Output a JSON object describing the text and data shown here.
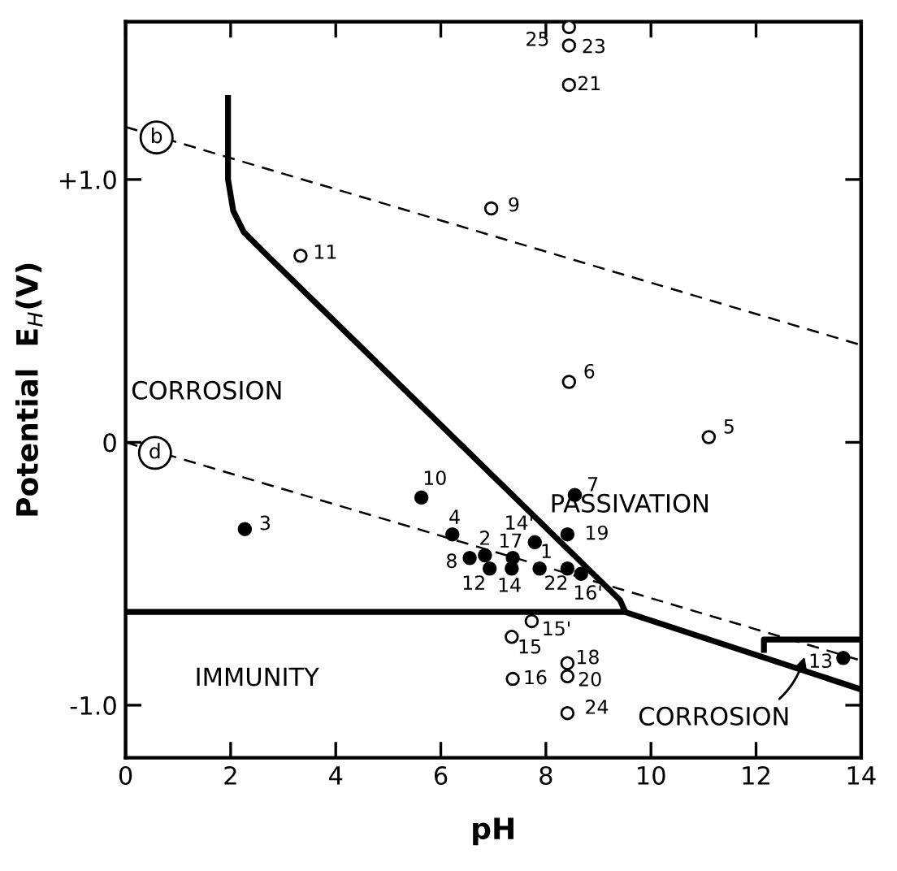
{
  "chart_data": {
    "type": "scatter",
    "xlabel": "pH",
    "ylabel": "Potential  E$_{H}$(V)",
    "xlim": [
      0,
      14
    ],
    "ylim": [
      -1.2,
      1.6
    ],
    "xticks": [
      0,
      2,
      4,
      6,
      8,
      10,
      12,
      14
    ],
    "yticks": [
      {
        "value": 1.0,
        "label": "+1.0"
      },
      0,
      {
        "value": -1.0,
        "label": "-1.0"
      }
    ],
    "grid": false,
    "series": [
      {
        "marker": "circle",
        "color": "#ffffff",
        "x": [
          8.44,
          8.44,
          8.44,
          6.96,
          3.33,
          8.44,
          11.1,
          7.73,
          7.35,
          7.37,
          8.41,
          8.41,
          8.41
        ],
        "values": [
          1.58,
          1.51,
          1.36,
          0.89,
          0.71,
          0.23,
          0.02,
          -0.68,
          -0.74,
          -0.9,
          -0.84,
          -0.89,
          -1.03
        ]
      },
      {
        "marker": "circle",
        "color": "#000000",
        "x": [
          5.63,
          2.27,
          8.55,
          6.22,
          8.41,
          7.79,
          6.84,
          6.93,
          6.55,
          7.37,
          7.35,
          7.88,
          8.41,
          8.67,
          13.66
        ],
        "values": [
          -0.21,
          -0.33,
          -0.2,
          -0.35,
          -0.35,
          -0.38,
          -0.43,
          -0.48,
          -0.44,
          -0.44,
          -0.48,
          -0.48,
          -0.48,
          -0.5,
          -0.82
        ]
      },
      {
        "type": "line",
        "color": "#000000",
        "line_style": "solid",
        "x": [
          1.95,
          1.95,
          2.05,
          2.25,
          2.65,
          9.41,
          9.5
        ],
        "values": [
          1.31,
          1.0,
          0.88,
          0.8,
          0.72,
          -0.6,
          -0.64
        ]
      },
      {
        "type": "line",
        "color": "#000000",
        "line_style": "solid",
        "x": [
          0,
          9.5,
          14.0
        ],
        "values": [
          -0.645,
          -0.645,
          -0.94
        ]
      },
      {
        "type": "line",
        "color": "#000000",
        "line_style": "solid",
        "x": [
          12.15,
          12.15,
          14.0
        ],
        "values": [
          -0.79,
          -0.75,
          -0.75
        ]
      },
      {
        "type": "line",
        "color": "#000000",
        "line_style": "dashed",
        "x": [
          0,
          14
        ],
        "values": [
          1.2,
          0.37
        ]
      },
      {
        "type": "line",
        "color": "#000000",
        "line_style": "dashed",
        "x": [
          0,
          14
        ],
        "values": [
          0.0,
          -0.83
        ]
      }
    ],
    "annotations": [
      {
        "text": "25",
        "x": 8.44,
        "y": 1.58
      },
      {
        "text": "23",
        "x": 8.44,
        "y": 1.51
      },
      {
        "text": "21",
        "x": 8.44,
        "y": 1.36
      },
      {
        "text": "9",
        "x": 6.96,
        "y": 0.89
      },
      {
        "text": "11",
        "x": 3.33,
        "y": 0.71
      },
      {
        "text": "6",
        "x": 8.44,
        "y": 0.23
      },
      {
        "text": "5",
        "x": 11.1,
        "y": 0.02
      },
      {
        "text": "15'",
        "x": 7.73,
        "y": -0.68
      },
      {
        "text": "15",
        "x": 7.35,
        "y": -0.74
      },
      {
        "text": "16",
        "x": 7.37,
        "y": -0.9
      },
      {
        "text": "18",
        "x": 8.41,
        "y": -0.84
      },
      {
        "text": "20",
        "x": 8.41,
        "y": -0.89
      },
      {
        "text": "24",
        "x": 8.41,
        "y": -1.03
      },
      {
        "text": "10",
        "x": 5.63,
        "y": -0.21
      },
      {
        "text": "3",
        "x": 2.27,
        "y": -0.33
      },
      {
        "text": "7",
        "x": 8.55,
        "y": -0.2
      },
      {
        "text": "4",
        "x": 6.22,
        "y": -0.35
      },
      {
        "text": "19",
        "x": 8.41,
        "y": -0.35
      },
      {
        "text": "14'",
        "x": 7.79,
        "y": -0.38
      },
      {
        "text": "2",
        "x": 6.84,
        "y": -0.43
      },
      {
        "text": "12",
        "x": 6.93,
        "y": -0.48
      },
      {
        "text": "8",
        "x": 6.55,
        "y": -0.44
      },
      {
        "text": "17",
        "x": 7.37,
        "y": -0.44
      },
      {
        "text": "14",
        "x": 7.35,
        "y": -0.48
      },
      {
        "text": "1",
        "x": 7.88,
        "y": -0.48
      },
      {
        "text": "22",
        "x": 8.41,
        "y": -0.48
      },
      {
        "text": "16'",
        "x": 8.67,
        "y": -0.5
      },
      {
        "text": "13",
        "x": 13.66,
        "y": -0.82
      },
      "CORROSION",
      "PASSIVATION",
      "IMMUNITY",
      {
        "text": "b",
        "x": 0.59,
        "y": 1.16
      },
      {
        "text": "d",
        "x": 0.56,
        "y": -0.04
      },
      {
        "text": "CORROSION",
        "x": 12.95,
        "y": -0.8
      }
    ]
  }
}
